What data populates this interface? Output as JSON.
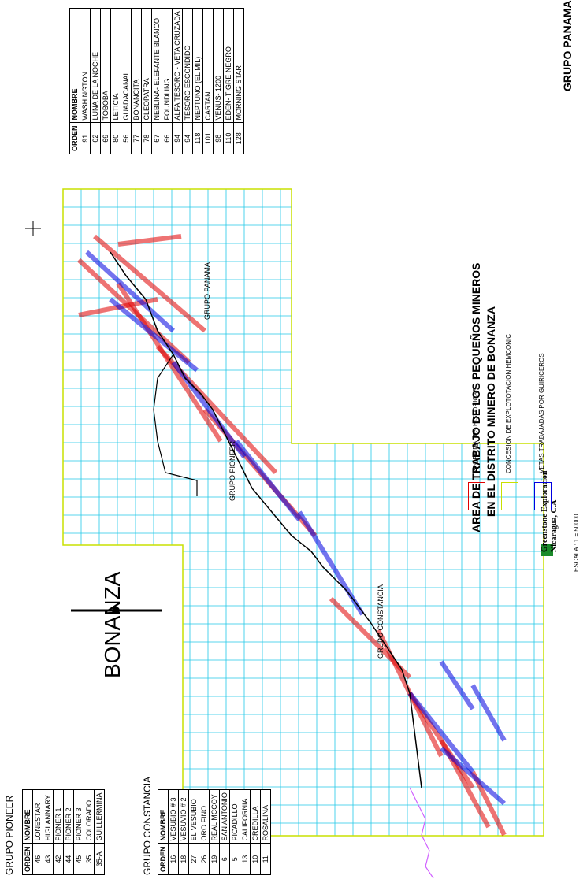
{
  "map_title_line1": "AREA DE TRABAJO DE LOS PEQUEÑOS MINEROS",
  "map_title_line2": "EN EL DISTRITO MINERO DE BONANZA",
  "town_name": "BONANZA",
  "group_labels": {
    "panama": "GRUPO PANAMA",
    "pioneer": "GRUPO PIONEER",
    "constancia": "GRUPO CONSTANCIA"
  },
  "legend": {
    "historic": {
      "label": "PROPIEDADES HISTORICAS",
      "color": "#e00000"
    },
    "concession": {
      "label": "CONCESION DE EXPLOTOTACION HEMCONIC",
      "color": "#c8e000"
    },
    "veins": {
      "label": "VETAS TRABAJADAS POR GUIRICEROS",
      "color": "#0000e0"
    }
  },
  "scale_text": "ESCALA : 1 = 50000",
  "company": {
    "line1": "Greenstone Exploración",
    "line2": "Nicaragua, C.A"
  },
  "table_headers": {
    "order": "ORDEN",
    "name": "NOMBRE"
  },
  "panama_table": {
    "title": "GRUPO PANAMA",
    "rows": [
      {
        "order": "91",
        "name": "WASHINGTON"
      },
      {
        "order": "62",
        "name": "LUNA DE LA NOCHE"
      },
      {
        "order": "69",
        "name": "TOBOBA"
      },
      {
        "order": "80",
        "name": "LETICIA"
      },
      {
        "order": "56",
        "name": "GUADACANAL"
      },
      {
        "order": "77",
        "name": "BONANCITA"
      },
      {
        "order": "78",
        "name": "CLEOPATRA"
      },
      {
        "order": "67",
        "name": "NEBLINA- ELEFANTE BLANCO"
      },
      {
        "order": "66",
        "name": "FOUNDLING"
      },
      {
        "order": "94",
        "name": "ALFA TESORO - VETA CRUZADA"
      },
      {
        "order": "94",
        "name": "TESORO ESCONDIDO"
      },
      {
        "order": "118",
        "name": "NEPTUNO (EL MIL)"
      },
      {
        "order": "101",
        "name": "CARTAN"
      },
      {
        "order": "98",
        "name": "VENUS- 1200"
      },
      {
        "order": "110",
        "name": "EDEN- TIGRE NEGRO"
      },
      {
        "order": "128",
        "name": "MORNING STAR"
      }
    ]
  },
  "pioneer_table": {
    "title": "GRUPO PIONEER",
    "rows": [
      {
        "order": "46",
        "name": "LONESTAR"
      },
      {
        "order": "43",
        "name": "HIGLANNARY"
      },
      {
        "order": "42",
        "name": "PIONER 1"
      },
      {
        "order": "44",
        "name": "PIONER 2"
      },
      {
        "order": "45",
        "name": "PIONER 3"
      },
      {
        "order": "35",
        "name": "COLORADO"
      },
      {
        "order": "35-A",
        "name": "GUILLERMINA"
      }
    ]
  },
  "constancia_table": {
    "title": "GRUPO CONSTANCIA",
    "rows": [
      {
        "order": "16",
        "name": "VESUBIO # 3"
      },
      {
        "order": "18",
        "name": "VESUVIO # 2"
      },
      {
        "order": "27",
        "name": "EL VESUBIO"
      },
      {
        "order": "26",
        "name": "ORO FINO"
      },
      {
        "order": "19",
        "name": "REAL MCCOY"
      },
      {
        "order": "6",
        "name": "SAN ANTONIO"
      },
      {
        "order": "5",
        "name": "PICADILLO"
      },
      {
        "order": "13",
        "name": "CALIFORNIA"
      },
      {
        "order": "10",
        "name": "CREDILLA"
      },
      {
        "order": "11",
        "name": "ROSALINA"
      }
    ]
  }
}
